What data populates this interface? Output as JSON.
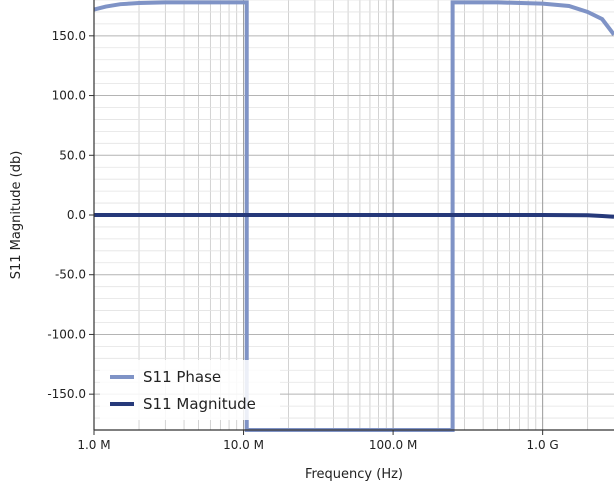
{
  "chart_data": {
    "type": "line",
    "title": "",
    "xlabel": "Frequency (Hz)",
    "ylabel": "S11 Magnitude (db)",
    "x_scale": "log",
    "xlim": [
      1000000,
      3000000000
    ],
    "ylim": [
      -180,
      180
    ],
    "x_ticks": [
      {
        "value": 1000000,
        "label": "1.0 M"
      },
      {
        "value": 10000000,
        "label": "10.0 M"
      },
      {
        "value": 100000000,
        "label": "100.0 M"
      },
      {
        "value": 1000000000,
        "label": "1.0 G"
      }
    ],
    "y_ticks": [
      {
        "value": 150,
        "label": "150.0"
      },
      {
        "value": 100,
        "label": "100.0"
      },
      {
        "value": 50,
        "label": "50.0"
      },
      {
        "value": 0,
        "label": "0.0"
      },
      {
        "value": -50,
        "label": "-50.0"
      },
      {
        "value": -100,
        "label": "-100.0"
      },
      {
        "value": -150,
        "label": "-150.0"
      }
    ],
    "grid": true,
    "legend_position": "bottom-left",
    "series": [
      {
        "name": "S11 Phase",
        "color": "#7f93c6",
        "x": [
          1000000,
          1200000,
          1500000,
          2000000,
          3000000,
          5000000,
          8000000,
          10500000,
          10500001,
          30000000,
          100000000,
          250000000,
          250000001,
          500000000,
          1000000000,
          1500000000,
          2000000000,
          2500000000,
          3000000000
        ],
        "y": [
          172,
          174.5,
          176.5,
          177.5,
          178,
          178,
          178,
          178,
          -180,
          -180,
          -180,
          -180,
          178,
          178,
          177,
          175,
          170,
          164,
          151
        ]
      },
      {
        "name": "S11 Magnitude",
        "color": "#26397a",
        "x": [
          1000000,
          10000000,
          100000000,
          1000000000,
          2000000000,
          2500000000,
          3000000000
        ],
        "y": [
          0,
          0,
          0,
          0,
          -0.2,
          -0.8,
          -1.5
        ]
      }
    ]
  }
}
